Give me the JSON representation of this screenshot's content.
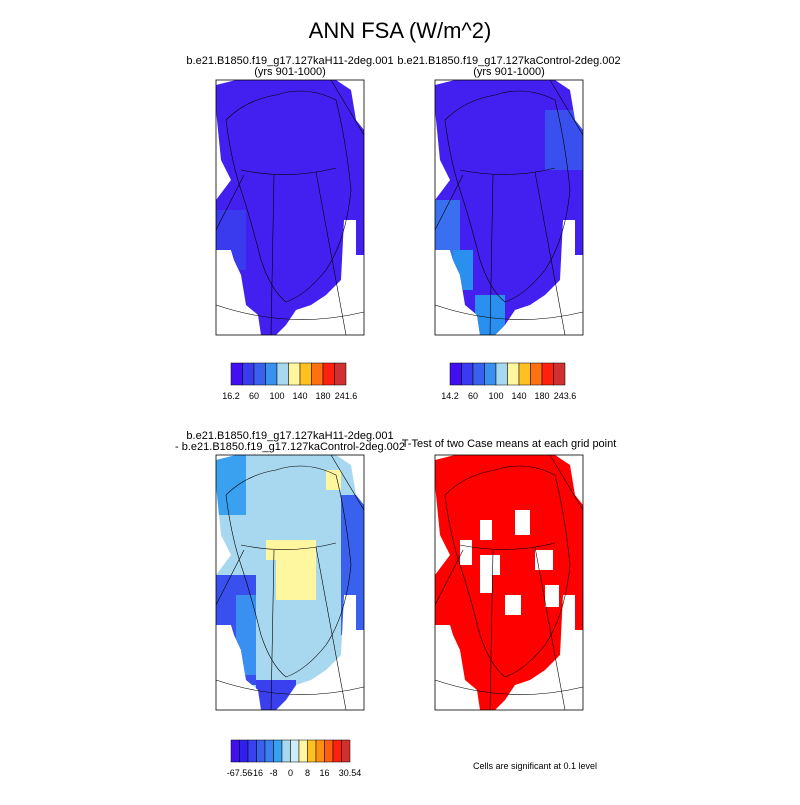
{
  "title": "ANN FSA (W/m^2)",
  "panels": [
    {
      "title": [
        "b.e21.B1850.f19_g17.127kaH11-2deg.001",
        "(yrs 901-1000)"
      ],
      "colorbar": [
        "16.2",
        "60",
        "100",
        "140",
        "180",
        "241.6"
      ]
    },
    {
      "title": [
        "b.e21.B1850.f19_g17.127kaControl-2deg.002",
        "(yrs 901-1000)"
      ],
      "colorbar": [
        "14.2",
        "60",
        "100",
        "140",
        "180",
        "243.6"
      ]
    },
    {
      "title": [
        "b.e21.B1850.f19_g17.127kaH11-2deg.001",
        "- b.e21.B1850.f19_g17.127kaControl-2deg.002"
      ],
      "colorbar": [
        "-67.56",
        "-16",
        "-8",
        "0",
        "8",
        "16",
        "30.54"
      ]
    },
    {
      "title": [
        "T-Test of two Case means at each grid point"
      ]
    }
  ],
  "note": "Cells are significant at 0.1 level"
}
